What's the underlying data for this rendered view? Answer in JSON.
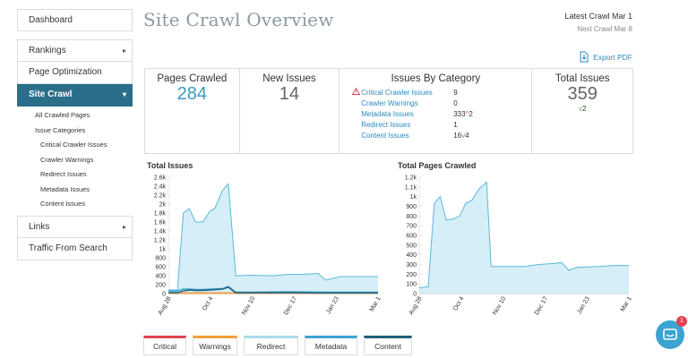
{
  "sidebar": {
    "items": [
      {
        "label": "Dashboard"
      },
      {
        "label": "Rankings"
      },
      {
        "label": "Page Optimization"
      },
      {
        "label": "Site Crawl"
      },
      {
        "label": "Links"
      },
      {
        "label": "Traffic From Search"
      }
    ],
    "sub_items": [
      "All Crawled Pages",
      "Issue Categories",
      "Critical Crawler Issues",
      "Crawler Warnings",
      "Redirect Issues",
      "Metadata Issues",
      "Content Issues"
    ]
  },
  "header": {
    "title": "Site Crawl Overview",
    "latest_crawl": "Latest Crawl Mar 1",
    "next_crawl": "Next Crawl Mar 8",
    "export": "Export PDF"
  },
  "summary": {
    "pages_crawled_label": "Pages Crawled",
    "pages_crawled_value": "284",
    "new_issues_label": "New Issues",
    "new_issues_value": "14",
    "issues_by_category_label": "Issues By Category",
    "categories": [
      {
        "name": "Critical Crawler Issues",
        "value": "9",
        "delta": ""
      },
      {
        "name": "Crawler Warnings",
        "value": "0",
        "delta": ""
      },
      {
        "name": "Metadata Issues",
        "value": "333",
        "delta": "2"
      },
      {
        "name": "Redirect Issues",
        "value": "1",
        "delta": ""
      },
      {
        "name": "Content Issues",
        "value": "16",
        "delta": "4"
      }
    ],
    "total_issues_label": "Total Issues",
    "total_issues_value": "359",
    "total_issues_delta": "2"
  },
  "chart_data": [
    {
      "type": "area",
      "title": "Total Issues",
      "x": [
        "Aug 28",
        "Oct 4",
        "Nov 10",
        "Dec 17",
        "Jan 23",
        "Mar 1"
      ],
      "yticks": [
        "2.6k",
        "2.4k",
        "2.2k",
        "2k",
        "1.8k",
        "1.6k",
        "1.4k",
        "1.2k",
        "1k",
        "800",
        "600",
        "400",
        "200",
        "0"
      ],
      "ylim": [
        0,
        2600
      ],
      "series": [
        {
          "name": "Redirect",
          "points": [
            [
              0,
              80
            ],
            [
              6,
              80
            ],
            [
              10,
              1800
            ],
            [
              14,
              1900
            ],
            [
              18,
              1600
            ],
            [
              23,
              1600
            ],
            [
              28,
              1850
            ],
            [
              31,
              1900
            ],
            [
              36,
              2300
            ],
            [
              40,
              2450
            ],
            [
              45,
              400
            ],
            [
              55,
              410
            ],
            [
              70,
              400
            ],
            [
              80,
              430
            ],
            [
              90,
              430
            ],
            [
              100,
              450
            ],
            [
              105,
              300
            ],
            [
              115,
              380
            ],
            [
              125,
              380
            ],
            [
              135,
              380
            ],
            [
              140,
              380
            ]
          ]
        },
        {
          "name": "Critical",
          "points": [
            [
              0,
              10
            ],
            [
              140,
              10
            ]
          ]
        },
        {
          "name": "Warnings",
          "points": [
            [
              0,
              10
            ],
            [
              140,
              10
            ]
          ]
        },
        {
          "name": "Metadata",
          "points": [
            [
              0,
              60
            ],
            [
              6,
              60
            ],
            [
              10,
              100
            ],
            [
              14,
              100
            ],
            [
              18,
              90
            ],
            [
              23,
              90
            ],
            [
              28,
              100
            ],
            [
              36,
              110
            ],
            [
              40,
              160
            ],
            [
              45,
              30
            ],
            [
              55,
              30
            ],
            [
              80,
              40
            ],
            [
              105,
              30
            ],
            [
              115,
              30
            ],
            [
              140,
              30
            ]
          ]
        },
        {
          "name": "Content",
          "points": [
            [
              0,
              20
            ],
            [
              6,
              20
            ],
            [
              10,
              60
            ],
            [
              14,
              80
            ],
            [
              18,
              70
            ],
            [
              23,
              70
            ],
            [
              28,
              80
            ],
            [
              36,
              100
            ],
            [
              40,
              140
            ],
            [
              45,
              20
            ],
            [
              55,
              20
            ],
            [
              80,
              20
            ],
            [
              105,
              15
            ],
            [
              115,
              15
            ],
            [
              140,
              15
            ]
          ]
        }
      ]
    },
    {
      "type": "area",
      "title": "Total Pages Crawled",
      "x": [
        "Aug 28",
        "Oct 4",
        "Nov 10",
        "Dec 17",
        "Jan 23",
        "Mar 1"
      ],
      "yticks": [
        "1.2k",
        "1.1k",
        "1k",
        "900",
        "800",
        "700",
        "600",
        "500",
        "400",
        "300",
        "200",
        "100",
        "0"
      ],
      "ylim": [
        0,
        1200
      ],
      "series": [
        {
          "name": "Pages Crawled",
          "points": [
            [
              0,
              60
            ],
            [
              6,
              70
            ],
            [
              10,
              930
            ],
            [
              14,
              1000
            ],
            [
              18,
              760
            ],
            [
              23,
              770
            ],
            [
              27,
              800
            ],
            [
              31,
              930
            ],
            [
              35,
              960
            ],
            [
              40,
              1080
            ],
            [
              45,
              1150
            ],
            [
              48,
              280
            ],
            [
              60,
              280
            ],
            [
              70,
              280
            ],
            [
              80,
              300
            ],
            [
              90,
              310
            ],
            [
              95,
              320
            ],
            [
              100,
              240
            ],
            [
              105,
              270
            ],
            [
              120,
              280
            ],
            [
              130,
              290
            ],
            [
              140,
              290
            ]
          ]
        }
      ]
    }
  ],
  "legend": [
    {
      "label": "Critical",
      "color": "#e0434f"
    },
    {
      "label": "Warnings",
      "color": "#f0a03a"
    },
    {
      "label": "Redirect",
      "color": "#a9dcea"
    },
    {
      "label": "Metadata",
      "color": "#3ba3d0"
    },
    {
      "label": "Content",
      "color": "#1f5f78"
    }
  ],
  "chat": {
    "badge": "1"
  },
  "colors": {
    "accent": "#2a6f8a",
    "link": "#2a8bc0",
    "area_fill": "#d2ecf6",
    "area_line": "#5bb8dc"
  }
}
